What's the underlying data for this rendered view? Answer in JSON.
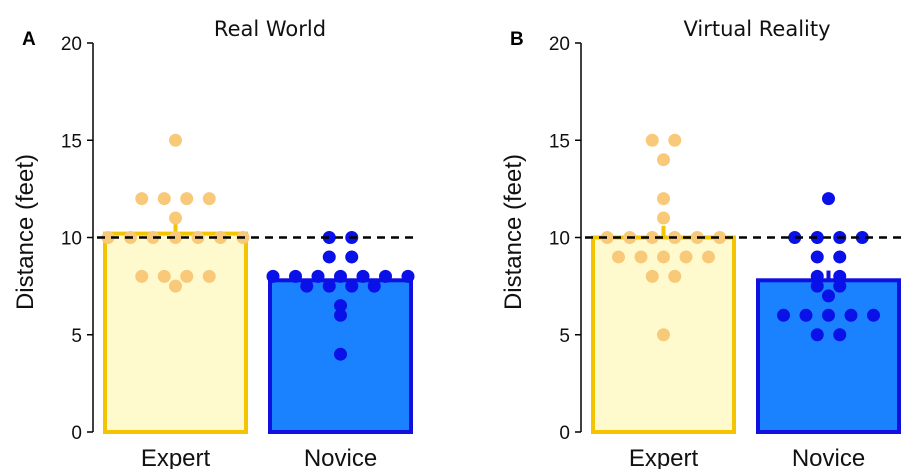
{
  "figure": {
    "background": "#ffffff",
    "reference_line": {
      "y": 10,
      "style": "dashed",
      "color": "#000000"
    }
  },
  "chart_data": [
    {
      "type": "bar",
      "panel_letter": "A",
      "title": "Real World",
      "ylabel": "Distance (feet)",
      "xlabel": "",
      "ylim": [
        0,
        20
      ],
      "yticks": [
        "0",
        "5",
        "10",
        "15",
        "20"
      ],
      "categories": [
        "Expert",
        "Novice"
      ],
      "bars": [
        {
          "category": "Expert",
          "mean": 10.2,
          "error": 0.5,
          "fill": "#fffacd",
          "stroke": "#f5c400",
          "point_color": "#f9c97a",
          "points": [
            15,
            12,
            12,
            12,
            12,
            10,
            11,
            10,
            10,
            10,
            10,
            10,
            10,
            8,
            8,
            8,
            8,
            7.5
          ]
        },
        {
          "category": "Novice",
          "mean": 7.8,
          "error": 0.4,
          "fill": "#1a82ff",
          "stroke": "#1010e0",
          "point_color": "#0a10e8",
          "points": [
            10,
            10,
            9,
            9,
            8,
            8,
            8,
            8,
            8,
            8,
            8,
            7.5,
            7.5,
            7.5,
            7.5,
            6.5,
            6,
            4
          ]
        }
      ]
    },
    {
      "type": "bar",
      "panel_letter": "B",
      "title": "Virtual Reality",
      "ylabel": "Distance (feet)",
      "xlabel": "",
      "ylim": [
        0,
        20
      ],
      "yticks": [
        "0",
        "5",
        "10",
        "15",
        "20"
      ],
      "categories": [
        "Expert",
        "Novice"
      ],
      "bars": [
        {
          "category": "Expert",
          "mean": 10.0,
          "error": 0.6,
          "fill": "#fffacd",
          "stroke": "#f5c400",
          "point_color": "#f9c97a",
          "points": [
            15,
            15,
            14,
            12,
            11,
            10,
            10,
            10,
            10,
            10,
            10,
            9,
            9,
            9,
            9,
            9,
            8,
            8,
            5
          ]
        },
        {
          "category": "Novice",
          "mean": 7.8,
          "error": 0.5,
          "fill": "#1a82ff",
          "stroke": "#1010e0",
          "point_color": "#0a10e8",
          "points": [
            12,
            10,
            10,
            10,
            10,
            9,
            9,
            8,
            8,
            7,
            7.5,
            7.5,
            6,
            6,
            6,
            6,
            6,
            5,
            5
          ]
        }
      ]
    }
  ]
}
